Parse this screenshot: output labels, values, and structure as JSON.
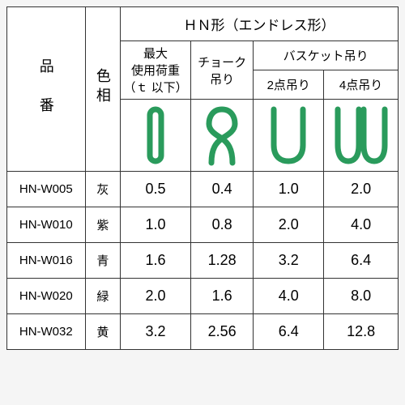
{
  "header": {
    "product_code": "品　番",
    "color": "色相",
    "shape_title": "ＨＮ形（エンドレス形）",
    "max_load": "最大\n使用荷重\n（ｔ 以下）",
    "choke": "チョーク\n吊り",
    "basket": "バスケット吊り",
    "basket2": "2点吊り",
    "basket4": "4点吊り"
  },
  "icon_color": "#2a9b5c",
  "icon_stroke_width": 7,
  "rows": [
    {
      "code": "HN-W005",
      "color": "灰",
      "v": [
        "0.5",
        "0.4",
        "1.0",
        "2.0"
      ]
    },
    {
      "code": "HN-W010",
      "color": "紫",
      "v": [
        "1.0",
        "0.8",
        "2.0",
        "4.0"
      ]
    },
    {
      "code": "HN-W016",
      "color": "青",
      "v": [
        "1.6",
        "1.28",
        "3.2",
        "6.4"
      ]
    },
    {
      "code": "HN-W020",
      "color": "緑",
      "v": [
        "2.0",
        "1.6",
        "4.0",
        "8.0"
      ]
    },
    {
      "code": "HN-W032",
      "color": "黄",
      "v": [
        "3.2",
        "2.56",
        "6.4",
        "12.8"
      ]
    }
  ],
  "col_widths": [
    "20%",
    "9%",
    "18%",
    "16%",
    "18%",
    "19%"
  ]
}
